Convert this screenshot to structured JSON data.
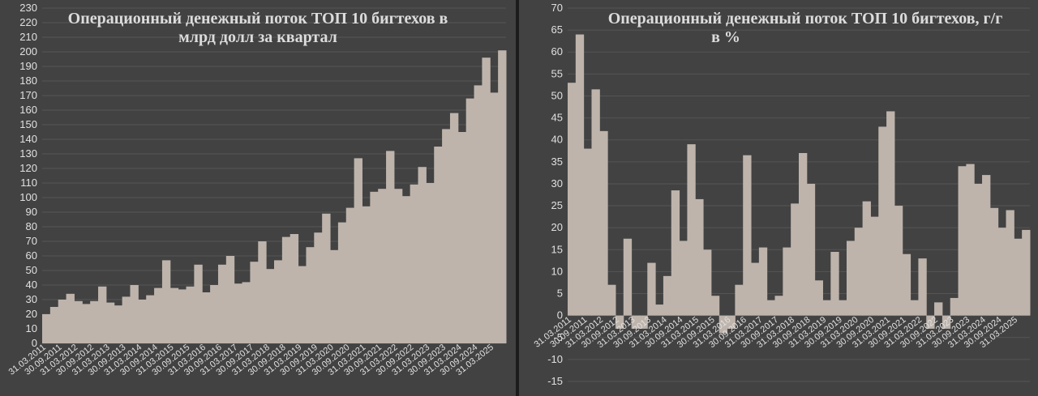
{
  "chart_data": [
    {
      "type": "bar",
      "title_lines": [
        "Операционный денежный поток ТОП 10 бигтехов в",
        "млрд долл за квартал"
      ],
      "ylim": [
        0,
        230
      ],
      "ytick_step": 10,
      "grid": true,
      "bar_color": "#beb4ac",
      "x_tick_labels": [
        "31.03.2011",
        "30.09.2011",
        "31.03.2012",
        "30.09.2012",
        "31.03.2013",
        "30.09.2013",
        "31.03.2014",
        "30.09.2014",
        "31.03.2015",
        "30.09.2015",
        "31.03.2016",
        "30.09.2016",
        "31.03.2017",
        "30.09.2017",
        "31.03.2018",
        "30.09.2018",
        "31.03.2019",
        "30.09.2019",
        "31.03.2020",
        "30.09.2020",
        "31.03.2021",
        "30.09.2021",
        "31.03.2022",
        "30.09.2022",
        "31.03.2023",
        "30.09.2023",
        "31.03.2024",
        "30.09.2024",
        "31.03.2025"
      ],
      "values": [
        20,
        25,
        30,
        34,
        29,
        27,
        29,
        39,
        28,
        26,
        32,
        40,
        30,
        33,
        38,
        57,
        38,
        37,
        39,
        54,
        35,
        40,
        54,
        60,
        41,
        42,
        56,
        70,
        51,
        57,
        73,
        75,
        53,
        66,
        76,
        89,
        64,
        83,
        93,
        127,
        94,
        104,
        106,
        132,
        106,
        101,
        109,
        121,
        110,
        135,
        147,
        158,
        145,
        168,
        177,
        196,
        172,
        201
      ]
    },
    {
      "type": "bar",
      "title_lines": [
        "Операционный денежный поток ТОП 10 бигтехов, г/г",
        "в %"
      ],
      "ylim": [
        -15,
        70
      ],
      "ytick_step": 5,
      "grid": true,
      "bar_color": "#beb4ac",
      "x_tick_labels": [
        "31.03.2011",
        "30.09.2011",
        "31.03.2012",
        "30.09.2012",
        "31.03.2013",
        "30.09.2013",
        "31.03.2014",
        "30.09.2014",
        "31.03.2015",
        "30.09.2015",
        "31.03.2016",
        "30.09.2016",
        "31.03.2017",
        "30.09.2017",
        "31.03.2018",
        "30.09.2018",
        "31.03.2019",
        "30.09.2019",
        "31.03.2020",
        "30.09.2020",
        "31.03.2021",
        "30.09.2021",
        "31.03.2022",
        "30.09.2022",
        "31.03.2023",
        "30.09.2023",
        "31.03.2024",
        "30.09.2024",
        "31.03.2025"
      ],
      "values": [
        53,
        64,
        38,
        51.5,
        42,
        7,
        -3,
        17.5,
        -3,
        -3,
        12,
        2.5,
        9,
        28.5,
        17,
        39,
        26.5,
        15,
        4.5,
        -4,
        -3,
        7,
        36.5,
        12,
        15.5,
        3.5,
        4.5,
        15.5,
        25.5,
        37,
        30,
        8,
        3.5,
        14.5,
        3.5,
        17,
        20,
        26,
        22.5,
        43,
        46.5,
        25,
        14,
        3.5,
        13,
        -3,
        3,
        -3,
        4,
        34,
        34.5,
        30,
        32,
        24.5,
        20,
        24,
        17.5,
        19.5
      ]
    }
  ]
}
